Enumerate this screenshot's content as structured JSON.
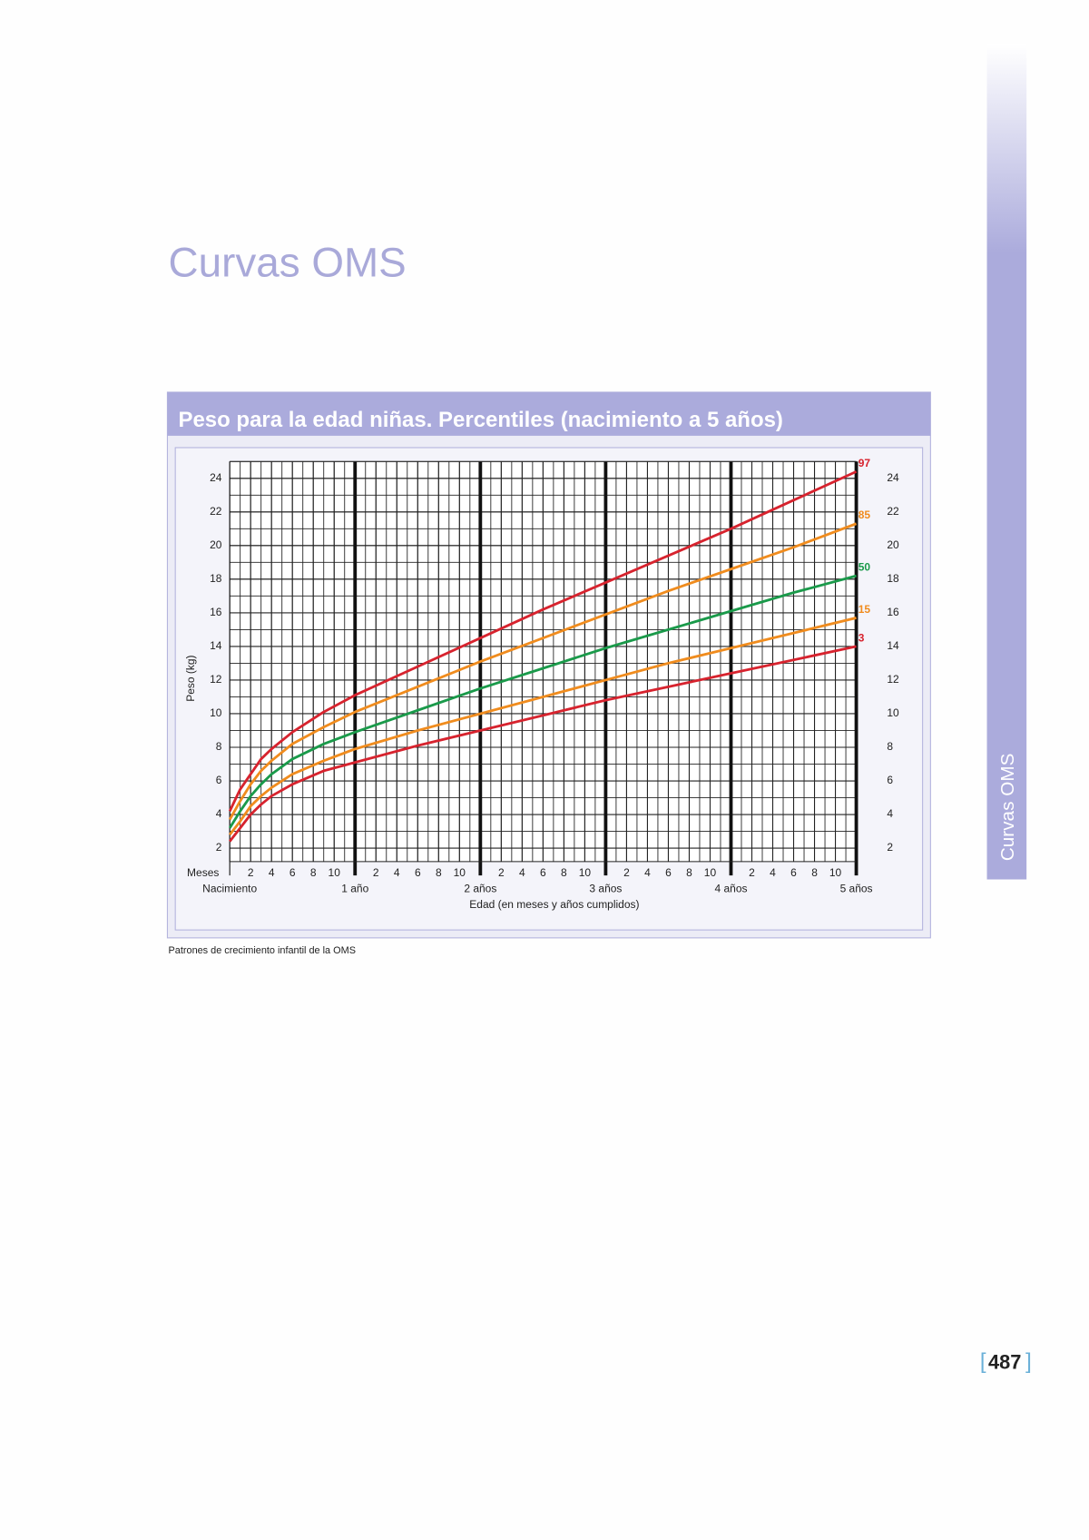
{
  "page": {
    "heading": "Curvas OMS",
    "side_tab": "Curvas OMS",
    "source": "Patrones de crecimiento infantil de la OMS",
    "page_number": "487"
  },
  "chart_data": {
    "type": "line",
    "title": "Peso para la edad niñas. Percentiles (nacimiento a 5 años)",
    "x_label": "Edad (en meses y años cumplidos)",
    "y_label": "Peso (kg)",
    "x_unit_label": "Meses",
    "x": [
      0,
      1,
      2,
      3,
      4,
      6,
      9,
      12,
      18,
      24,
      30,
      36,
      42,
      48,
      54,
      60
    ],
    "series": [
      {
        "name": "97",
        "color": "#d7232e",
        "values": [
          4.2,
          5.5,
          6.4,
          7.3,
          7.9,
          8.9,
          10.1,
          11.1,
          12.8,
          14.5,
          16.2,
          17.8,
          19.4,
          21.0,
          22.7,
          24.4
        ]
      },
      {
        "name": "85",
        "color": "#f08c1e",
        "values": [
          3.7,
          4.8,
          5.8,
          6.6,
          7.2,
          8.2,
          9.2,
          10.1,
          11.6,
          13.1,
          14.5,
          15.9,
          17.3,
          18.6,
          19.9,
          21.3
        ]
      },
      {
        "name": "50",
        "color": "#1a9a4a",
        "values": [
          3.2,
          4.2,
          5.1,
          5.8,
          6.4,
          7.3,
          8.2,
          8.9,
          10.2,
          11.5,
          12.7,
          13.9,
          15.0,
          16.1,
          17.2,
          18.2
        ]
      },
      {
        "name": "15",
        "color": "#f08c1e",
        "values": [
          2.8,
          3.6,
          4.5,
          5.1,
          5.6,
          6.4,
          7.2,
          7.9,
          9.0,
          10.0,
          11.0,
          12.0,
          13.0,
          13.9,
          14.8,
          15.7
        ]
      },
      {
        "name": "3",
        "color": "#d7232e",
        "values": [
          2.4,
          3.2,
          4.0,
          4.6,
          5.1,
          5.8,
          6.6,
          7.1,
          8.1,
          9.0,
          9.9,
          10.8,
          11.6,
          12.4,
          13.2,
          14.0
        ]
      }
    ],
    "xlim": [
      0,
      60
    ],
    "ylim": [
      1.2,
      25
    ],
    "yticks": [
      2,
      4,
      6,
      8,
      10,
      12,
      14,
      16,
      18,
      20,
      22,
      24
    ],
    "xticks": [
      2,
      4,
      6,
      8,
      10,
      {
        "value": 14,
        "label": "2"
      },
      {
        "value": 16,
        "label": "4"
      },
      {
        "value": 18,
        "label": "6"
      },
      {
        "value": 20,
        "label": "8"
      },
      {
        "value": 22,
        "label": "10"
      },
      {
        "value": 26,
        "label": "2"
      },
      {
        "value": 28,
        "label": "4"
      },
      {
        "value": 30,
        "label": "6"
      },
      {
        "value": 32,
        "label": "8"
      },
      {
        "value": 34,
        "label": "10"
      },
      {
        "value": 38,
        "label": "2"
      },
      {
        "value": 40,
        "label": "4"
      },
      {
        "value": 42,
        "label": "6"
      },
      {
        "value": 44,
        "label": "8"
      },
      {
        "value": 46,
        "label": "10"
      },
      {
        "value": 50,
        "label": "2"
      },
      {
        "value": 52,
        "label": "4"
      },
      {
        "value": 54,
        "label": "6"
      },
      {
        "value": 56,
        "label": "8"
      },
      {
        "value": 58,
        "label": "10"
      }
    ],
    "year_ticks": [
      {
        "value": 0,
        "label": "Nacimiento"
      },
      {
        "value": 12,
        "label": "1 año"
      },
      {
        "value": 24,
        "label": "2 años"
      },
      {
        "value": 36,
        "label": "3 años"
      },
      {
        "value": 48,
        "label": "4 años"
      },
      {
        "value": 60,
        "label": "5 años"
      }
    ],
    "grid": true,
    "minor_grid": true
  }
}
